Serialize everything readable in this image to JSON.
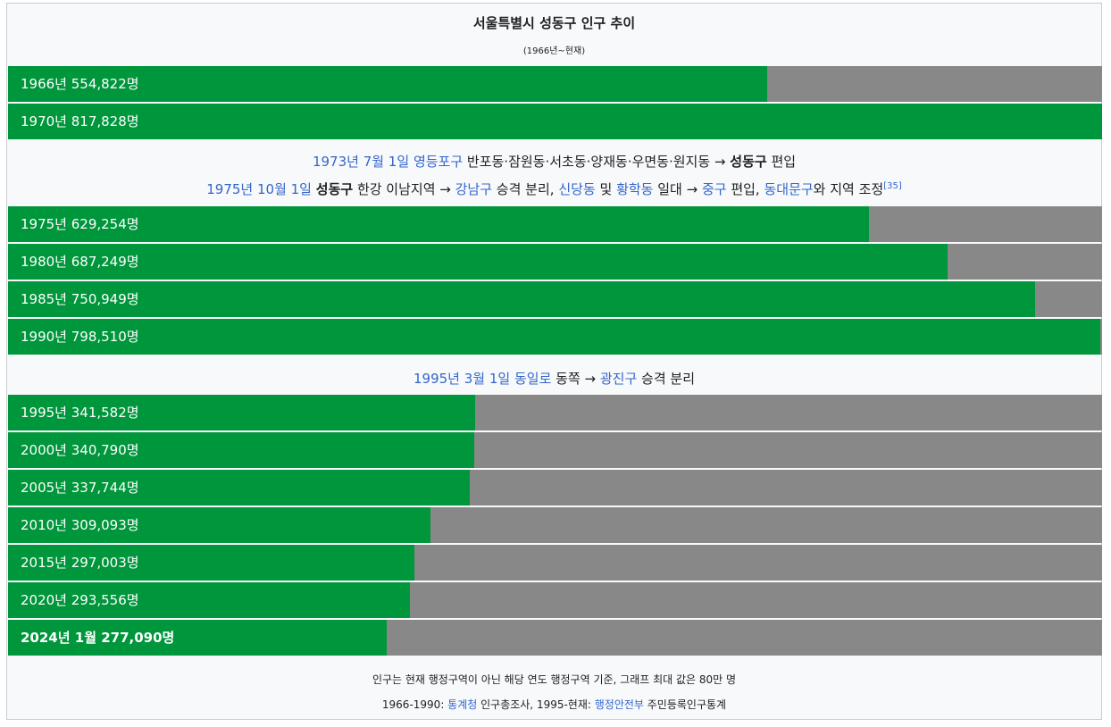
{
  "title": "서울특별시 성동구 인구 추이",
  "subtitle": "(1966년~현재)",
  "colors": {
    "bar": "#00963c",
    "track": "#888888",
    "link": "#3366cc"
  },
  "chart_data": {
    "type": "bar",
    "orientation": "horizontal",
    "title": "서울특별시 성동구 인구 추이",
    "xlim": [
      0,
      800000
    ],
    "categories": [
      "1966년",
      "1970년",
      "1975년",
      "1980년",
      "1985년",
      "1990년",
      "1995년",
      "2000년",
      "2005년",
      "2010년",
      "2015년",
      "2020년",
      "2024년 1월"
    ],
    "values": [
      554822,
      817828,
      629254,
      687249,
      750949,
      798510,
      341582,
      340790,
      337744,
      309093,
      297003,
      293556,
      277090
    ],
    "labels": [
      "1966년 554,822명",
      "1970년 817,828명",
      "1975년 629,254명",
      "1980년 687,249명",
      "1985년 750,949명",
      "1990년 798,510명",
      "1995년 341,582명",
      "2000년 340,790명",
      "2005년 337,744명",
      "2010년 309,093명",
      "2015년 297,003명",
      "2020년 293,556명",
      "2024년 1월 277,090명"
    ]
  },
  "notes": {
    "n1": {
      "a": "1973년 7월 1일",
      "b": "영등포구",
      "c": " 반포동·잠원동·서초동·양재동·우면동·원지동 → ",
      "d": "성동구",
      "e": " 편입"
    },
    "n2": {
      "a": "1975년 10월 1일",
      "b": " ",
      "c": "성동구",
      "d": " 한강 이남지역 → ",
      "e": "강남구",
      "f": " 승격 분리, ",
      "g": "신당동",
      "h": " 및 ",
      "i": "황학동",
      "j": " 일대 → ",
      "k": "중구",
      "l": " 편입, ",
      "m": "동대문구",
      "n": "와 지역 조정",
      "ref": "[35]"
    },
    "n3": {
      "a": "1995년 3월 1일",
      "b": " ",
      "c": "동일로",
      "d": " 동쪽 → ",
      "e": "광진구",
      "f": " 승격 분리"
    }
  },
  "footer": {
    "line1": "인구는 현재 행정구역이 아닌 해당 연도 행정구역 기준, 그래프 최대 값은 80만 명",
    "line2": {
      "a": "1966-1990: ",
      "b": "통계청",
      "c": " 인구총조사, 1995-현재: ",
      "d": "행정안전부",
      "e": " 주민등록인구통계"
    }
  }
}
